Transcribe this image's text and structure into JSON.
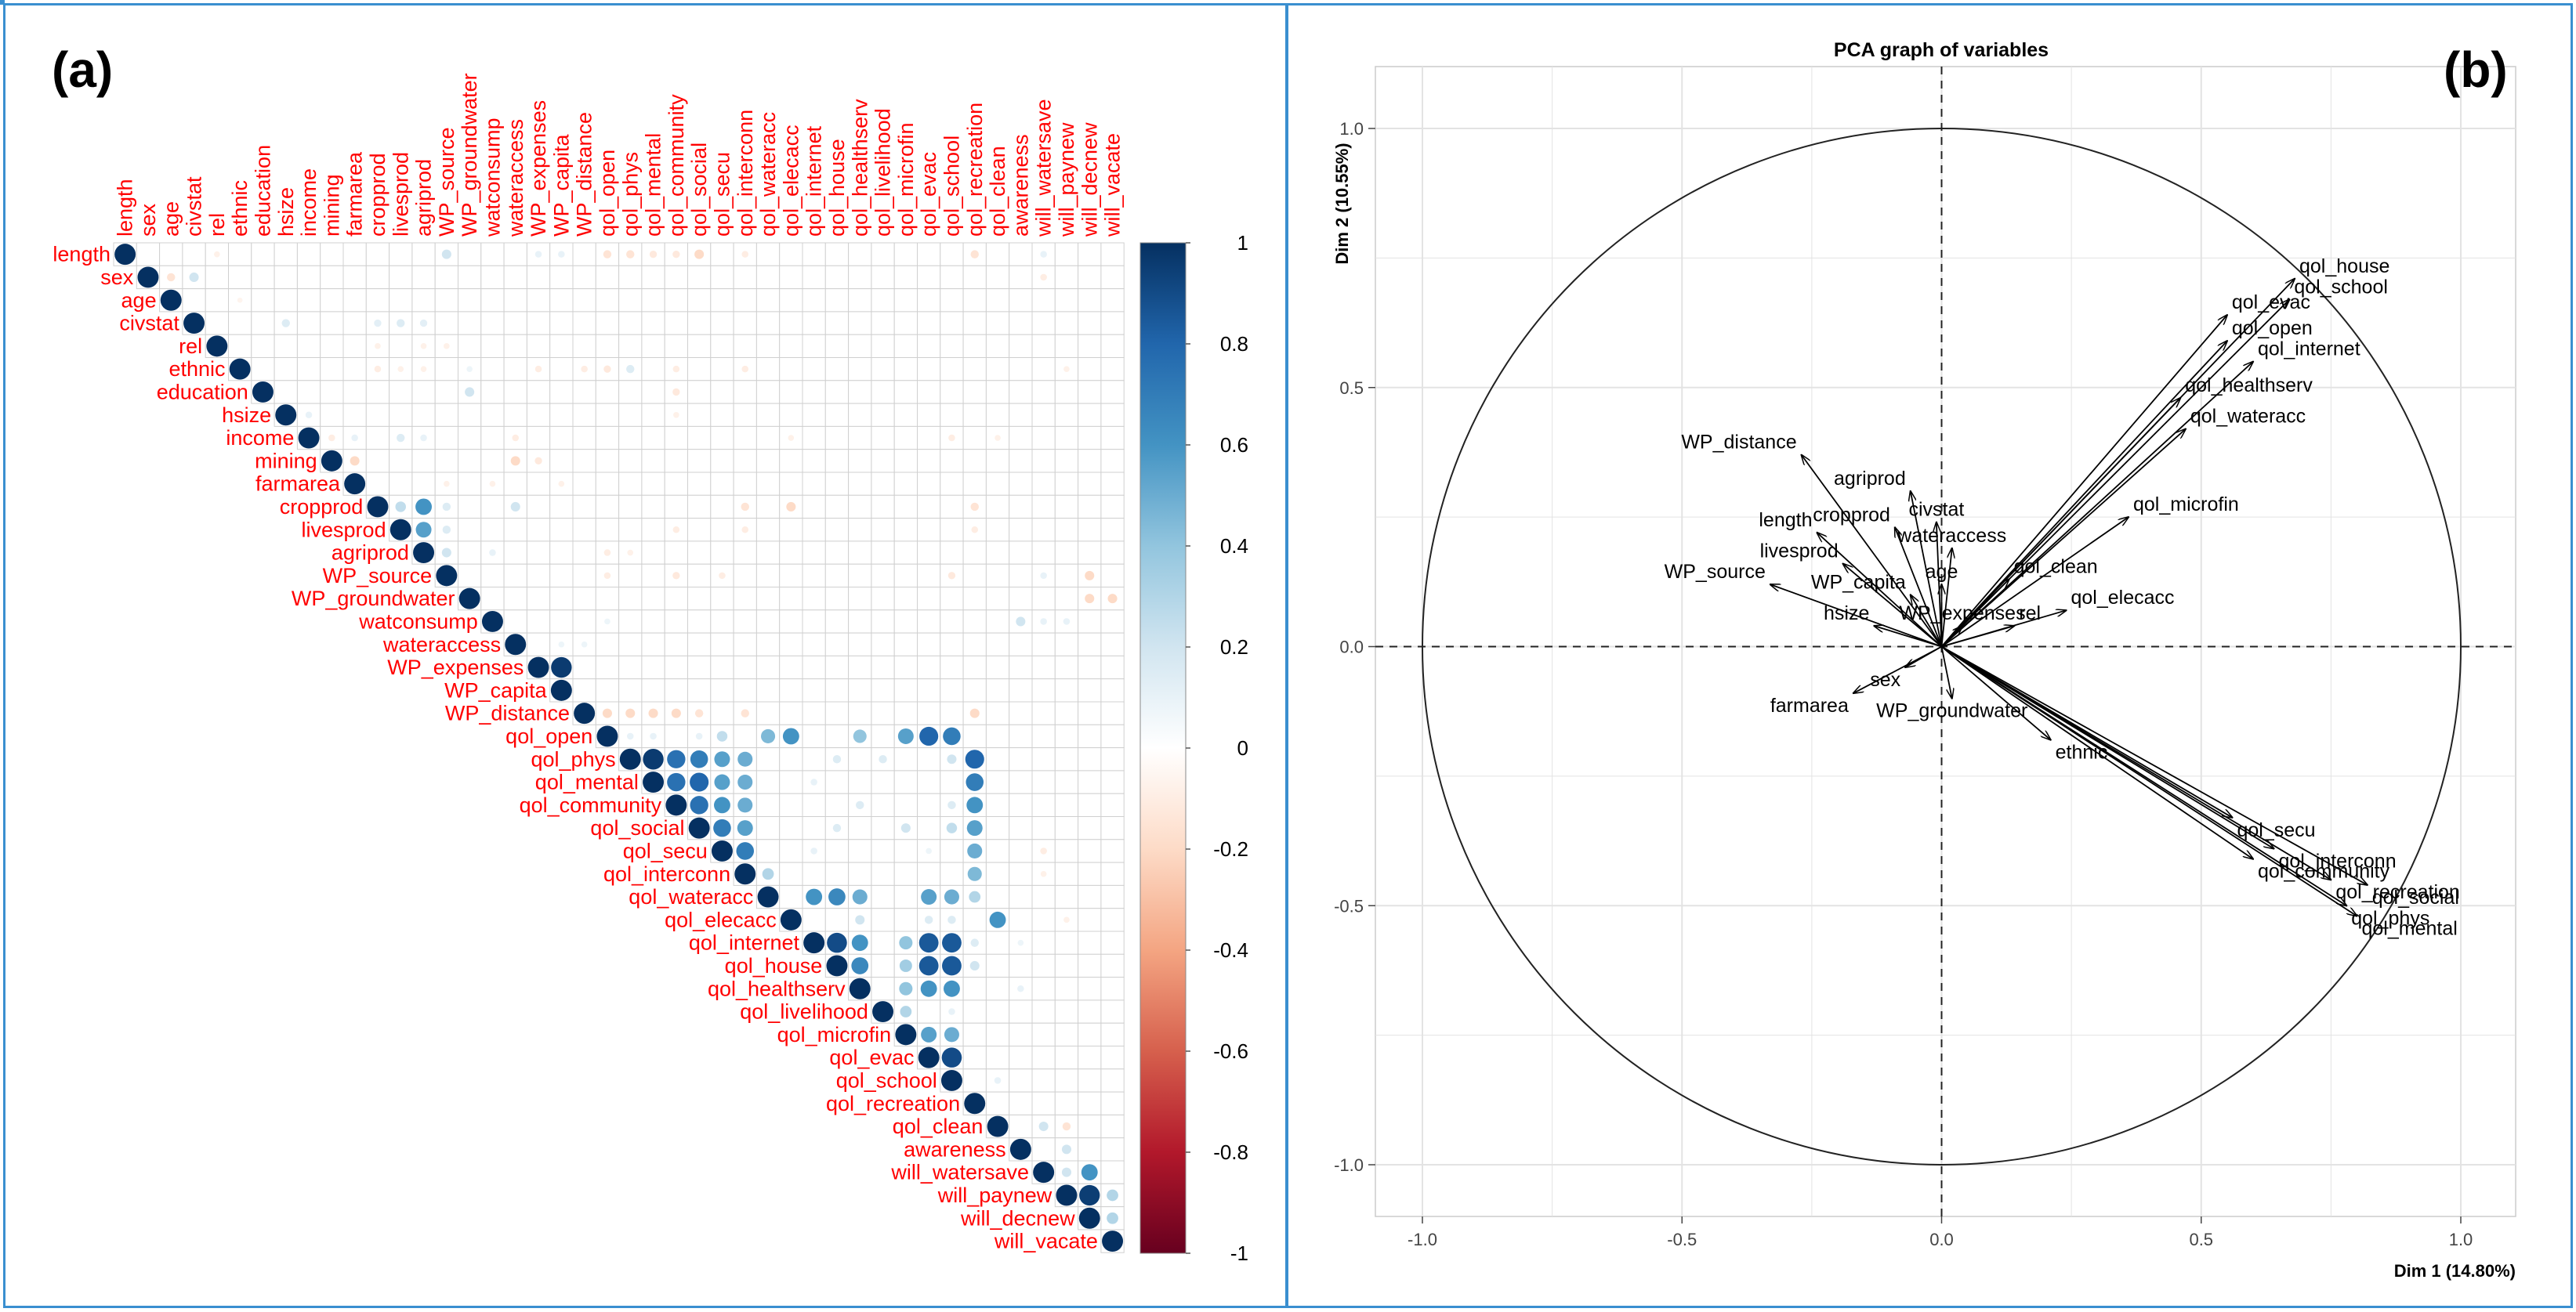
{
  "panels": {
    "a_label": "(a)",
    "b_label": "(b)"
  },
  "chart_data": [
    {
      "type": "heatmap",
      "subtype": "correlation-matrix-upper-triangle",
      "variables": [
        "length",
        "sex",
        "age",
        "civstat",
        "rel",
        "ethnic",
        "education",
        "hsize",
        "income",
        "mining",
        "farmarea",
        "cropprod",
        "livesprod",
        "agriprod",
        "WP_source",
        "WP_groundwater",
        "watconsump",
        "wateraccess",
        "WP_expenses",
        "WP_capita",
        "WP_distance",
        "qol_open",
        "qol_phys",
        "qol_mental",
        "qol_community",
        "qol_social",
        "qol_secu",
        "qol_interconn",
        "qol_wateracc",
        "qol_elecacc",
        "qol_internet",
        "qol_house",
        "qol_healthserv",
        "qol_livelihood",
        "qol_microfin",
        "qol_evac",
        "qol_school",
        "qol_recreation",
        "qol_clean",
        "awareness",
        "will_watersave",
        "will_paynew",
        "will_decnew",
        "will_vacate"
      ],
      "colorbar": {
        "ticks": [
          1,
          0.8,
          0.6,
          0.4,
          0.2,
          0,
          -0.2,
          -0.4,
          -0.6,
          -0.8,
          -1
        ],
        "range": [
          -1,
          1
        ],
        "low_color": "#67001f",
        "mid_color": "#ffffff",
        "high_color": "#053061"
      },
      "label_color": "#ff0000",
      "cells": [
        [
          0,
          4,
          -0.08
        ],
        [
          0,
          14,
          0.2
        ],
        [
          0,
          18,
          0.1
        ],
        [
          0,
          19,
          0.1
        ],
        [
          0,
          21,
          -0.15
        ],
        [
          0,
          22,
          -0.15
        ],
        [
          0,
          23,
          -0.12
        ],
        [
          0,
          24,
          -0.12
        ],
        [
          0,
          25,
          -0.2
        ],
        [
          0,
          27,
          -0.1
        ],
        [
          0,
          37,
          -0.15
        ],
        [
          0,
          40,
          0.1
        ],
        [
          1,
          2,
          -0.15
        ],
        [
          1,
          3,
          0.2
        ],
        [
          1,
          40,
          -0.1
        ],
        [
          2,
          5,
          -0.06
        ],
        [
          3,
          7,
          0.15
        ],
        [
          3,
          11,
          0.12
        ],
        [
          3,
          12,
          0.15
        ],
        [
          3,
          13,
          0.12
        ],
        [
          4,
          11,
          -0.08
        ],
        [
          4,
          13,
          -0.08
        ],
        [
          4,
          14,
          -0.08
        ],
        [
          5,
          11,
          -0.1
        ],
        [
          5,
          12,
          -0.08
        ],
        [
          5,
          13,
          -0.08
        ],
        [
          5,
          15,
          0.08
        ],
        [
          5,
          18,
          -0.1
        ],
        [
          5,
          20,
          -0.1
        ],
        [
          5,
          21,
          -0.12
        ],
        [
          5,
          22,
          0.15
        ],
        [
          5,
          24,
          -0.1
        ],
        [
          5,
          27,
          -0.1
        ],
        [
          5,
          41,
          -0.08
        ],
        [
          6,
          15,
          0.2
        ],
        [
          6,
          24,
          -0.12
        ],
        [
          7,
          8,
          0.1
        ],
        [
          7,
          24,
          -0.08
        ],
        [
          8,
          9,
          -0.1
        ],
        [
          8,
          10,
          0.1
        ],
        [
          8,
          12,
          0.15
        ],
        [
          8,
          13,
          0.1
        ],
        [
          8,
          17,
          -0.1
        ],
        [
          8,
          29,
          -0.08
        ],
        [
          8,
          36,
          -0.1
        ],
        [
          8,
          38,
          -0.08
        ],
        [
          9,
          10,
          -0.2
        ],
        [
          9,
          17,
          -0.2
        ],
        [
          9,
          18,
          -0.12
        ],
        [
          10,
          14,
          -0.08
        ],
        [
          10,
          16,
          -0.08
        ],
        [
          10,
          19,
          -0.08
        ],
        [
          11,
          12,
          0.25
        ],
        [
          11,
          13,
          0.6
        ],
        [
          11,
          14,
          0.15
        ],
        [
          11,
          17,
          0.2
        ],
        [
          11,
          27,
          -0.15
        ],
        [
          11,
          29,
          -0.2
        ],
        [
          11,
          37,
          -0.15
        ],
        [
          12,
          13,
          0.55
        ],
        [
          12,
          14,
          0.15
        ],
        [
          12,
          24,
          -0.1
        ],
        [
          12,
          27,
          -0.1
        ],
        [
          12,
          37,
          -0.1
        ],
        [
          13,
          14,
          0.2
        ],
        [
          13,
          16,
          0.1
        ],
        [
          13,
          21,
          -0.1
        ],
        [
          13,
          22,
          -0.08
        ],
        [
          14,
          21,
          -0.1
        ],
        [
          14,
          24,
          -0.12
        ],
        [
          14,
          26,
          -0.1
        ],
        [
          14,
          36,
          -0.12
        ],
        [
          14,
          40,
          0.1
        ],
        [
          14,
          42,
          -0.2
        ],
        [
          15,
          42,
          -0.2
        ],
        [
          15,
          43,
          -0.2
        ],
        [
          16,
          21,
          0.08
        ],
        [
          16,
          39,
          0.2
        ],
        [
          16,
          40,
          0.1
        ],
        [
          16,
          41,
          0.1
        ],
        [
          17,
          19,
          0.08
        ],
        [
          17,
          20,
          0.08
        ],
        [
          18,
          19,
          0.96
        ],
        [
          20,
          21,
          -0.2
        ],
        [
          20,
          22,
          -0.2
        ],
        [
          20,
          23,
          -0.2
        ],
        [
          20,
          24,
          -0.2
        ],
        [
          20,
          25,
          -0.15
        ],
        [
          20,
          27,
          -0.15
        ],
        [
          20,
          37,
          -0.2
        ],
        [
          21,
          22,
          0.1
        ],
        [
          21,
          23,
          0.1
        ],
        [
          21,
          25,
          0.1
        ],
        [
          21,
          26,
          0.25
        ],
        [
          21,
          28,
          0.45
        ],
        [
          21,
          29,
          0.6
        ],
        [
          21,
          32,
          0.4
        ],
        [
          21,
          34,
          0.55
        ],
        [
          21,
          35,
          0.8
        ],
        [
          21,
          36,
          0.7
        ],
        [
          22,
          23,
          0.96
        ],
        [
          22,
          24,
          0.75
        ],
        [
          22,
          25,
          0.7
        ],
        [
          22,
          26,
          0.55
        ],
        [
          22,
          27,
          0.5
        ],
        [
          22,
          31,
          0.15
        ],
        [
          22,
          33,
          0.15
        ],
        [
          22,
          36,
          0.2
        ],
        [
          22,
          37,
          0.8
        ],
        [
          23,
          24,
          0.75
        ],
        [
          23,
          25,
          0.8
        ],
        [
          23,
          26,
          0.55
        ],
        [
          23,
          27,
          0.5
        ],
        [
          23,
          30,
          0.1
        ],
        [
          23,
          37,
          0.7
        ],
        [
          24,
          25,
          0.75
        ],
        [
          24,
          26,
          0.6
        ],
        [
          24,
          27,
          0.5
        ],
        [
          24,
          32,
          0.15
        ],
        [
          24,
          36,
          0.15
        ],
        [
          24,
          37,
          0.6
        ],
        [
          25,
          26,
          0.7
        ],
        [
          25,
          27,
          0.55
        ],
        [
          25,
          31,
          0.15
        ],
        [
          25,
          34,
          0.2
        ],
        [
          25,
          36,
          0.25
        ],
        [
          25,
          37,
          0.55
        ],
        [
          26,
          27,
          0.7
        ],
        [
          26,
          30,
          0.1
        ],
        [
          26,
          35,
          0.08
        ],
        [
          26,
          37,
          0.5
        ],
        [
          26,
          40,
          -0.1
        ],
        [
          27,
          28,
          0.3
        ],
        [
          27,
          37,
          0.45
        ],
        [
          27,
          40,
          -0.08
        ],
        [
          28,
          30,
          0.6
        ],
        [
          28,
          31,
          0.65
        ],
        [
          28,
          32,
          0.5
        ],
        [
          28,
          35,
          0.55
        ],
        [
          28,
          36,
          0.5
        ],
        [
          28,
          37,
          0.3
        ],
        [
          29,
          32,
          0.2
        ],
        [
          29,
          35,
          0.15
        ],
        [
          29,
          36,
          0.15
        ],
        [
          29,
          38,
          0.6
        ],
        [
          29,
          41,
          -0.08
        ],
        [
          30,
          31,
          0.9
        ],
        [
          30,
          32,
          0.6
        ],
        [
          30,
          34,
          0.4
        ],
        [
          30,
          35,
          0.85
        ],
        [
          30,
          36,
          0.85
        ],
        [
          30,
          37,
          0.15
        ],
        [
          30,
          39,
          0.08
        ],
        [
          31,
          32,
          0.65
        ],
        [
          31,
          34,
          0.35
        ],
        [
          31,
          35,
          0.85
        ],
        [
          31,
          36,
          0.85
        ],
        [
          31,
          37,
          0.2
        ],
        [
          32,
          34,
          0.4
        ],
        [
          32,
          35,
          0.6
        ],
        [
          32,
          36,
          0.6
        ],
        [
          32,
          39,
          0.1
        ],
        [
          33,
          34,
          0.3
        ],
        [
          33,
          36,
          0.1
        ],
        [
          34,
          35,
          0.55
        ],
        [
          34,
          36,
          0.5
        ],
        [
          35,
          36,
          0.9
        ],
        [
          36,
          38,
          0.1
        ],
        [
          38,
          40,
          0.2
        ],
        [
          38,
          41,
          -0.15
        ],
        [
          39,
          41,
          0.2
        ],
        [
          40,
          41,
          0.2
        ],
        [
          40,
          42,
          0.6
        ],
        [
          41,
          42,
          0.95
        ],
        [
          41,
          43,
          0.3
        ],
        [
          42,
          43,
          0.3
        ]
      ]
    },
    {
      "type": "scatter",
      "subtype": "pca-correlation-circle",
      "title": "PCA graph of variables",
      "xlabel": "Dim 1 (14.80%)",
      "ylabel": "Dim 2 (10.55%)",
      "xlim": [
        -1.0,
        1.0
      ],
      "ylim": [
        -1.0,
        1.0
      ],
      "xticks": [
        "-1.0",
        "-0.5",
        "0.0",
        "0.5",
        "1.0"
      ],
      "yticks": [
        "-1.0",
        "-0.5",
        "0.0",
        "0.5",
        "1.0"
      ],
      "grid": true,
      "background": "#ffffff",
      "vectors": [
        {
          "name": "qol_house",
          "x": 0.68,
          "y": 0.71
        },
        {
          "name": "qol_school",
          "x": 0.67,
          "y": 0.67
        },
        {
          "name": "qol_evac",
          "x": 0.55,
          "y": 0.64
        },
        {
          "name": "qol_open",
          "x": 0.55,
          "y": 0.59
        },
        {
          "name": "qol_internet",
          "x": 0.6,
          "y": 0.55
        },
        {
          "name": "qol_healthserv",
          "x": 0.46,
          "y": 0.48
        },
        {
          "name": "qol_wateracc",
          "x": 0.47,
          "y": 0.42
        },
        {
          "name": "qol_microfin",
          "x": 0.36,
          "y": 0.25
        },
        {
          "name": "wateraccess",
          "x": 0.02,
          "y": 0.19
        },
        {
          "name": "qol_clean",
          "x": 0.13,
          "y": 0.13
        },
        {
          "name": "qol_elecacc",
          "x": 0.24,
          "y": 0.07
        },
        {
          "name": "rel",
          "x": 0.14,
          "y": 0.04
        },
        {
          "name": "age",
          "x": 0.0,
          "y": 0.12
        },
        {
          "name": "civstat",
          "x": -0.01,
          "y": 0.24
        },
        {
          "name": "agriprod",
          "x": -0.06,
          "y": 0.3
        },
        {
          "name": "cropprod",
          "x": -0.09,
          "y": 0.23
        },
        {
          "name": "WP_distance",
          "x": -0.27,
          "y": 0.37
        },
        {
          "name": "length",
          "x": -0.24,
          "y": 0.22
        },
        {
          "name": "livesprod",
          "x": -0.19,
          "y": 0.16
        },
        {
          "name": "WP_capita",
          "x": -0.06,
          "y": 0.1
        },
        {
          "name": "WP_source",
          "x": -0.33,
          "y": 0.12
        },
        {
          "name": "hsize",
          "x": -0.13,
          "y": 0.04
        },
        {
          "name": "WP_expenses",
          "x": 0.04,
          "y": 0.04
        },
        {
          "name": "sex",
          "x": -0.07,
          "y": -0.04
        },
        {
          "name": "farmarea",
          "x": -0.17,
          "y": -0.09
        },
        {
          "name": "WP_groundwater",
          "x": 0.02,
          "y": -0.1
        },
        {
          "name": "ethnic",
          "x": 0.21,
          "y": -0.18
        },
        {
          "name": "qol_secu",
          "x": 0.56,
          "y": -0.33
        },
        {
          "name": "qol_interconn",
          "x": 0.64,
          "y": -0.39
        },
        {
          "name": "qol_community",
          "x": 0.6,
          "y": -0.41
        },
        {
          "name": "qol_social",
          "x": 0.82,
          "y": -0.46
        },
        {
          "name": "qol_recreation",
          "x": 0.75,
          "y": -0.45
        },
        {
          "name": "qol_mental",
          "x": 0.8,
          "y": -0.52
        },
        {
          "name": "qol_phys",
          "x": 0.78,
          "y": -0.5
        }
      ]
    }
  ]
}
